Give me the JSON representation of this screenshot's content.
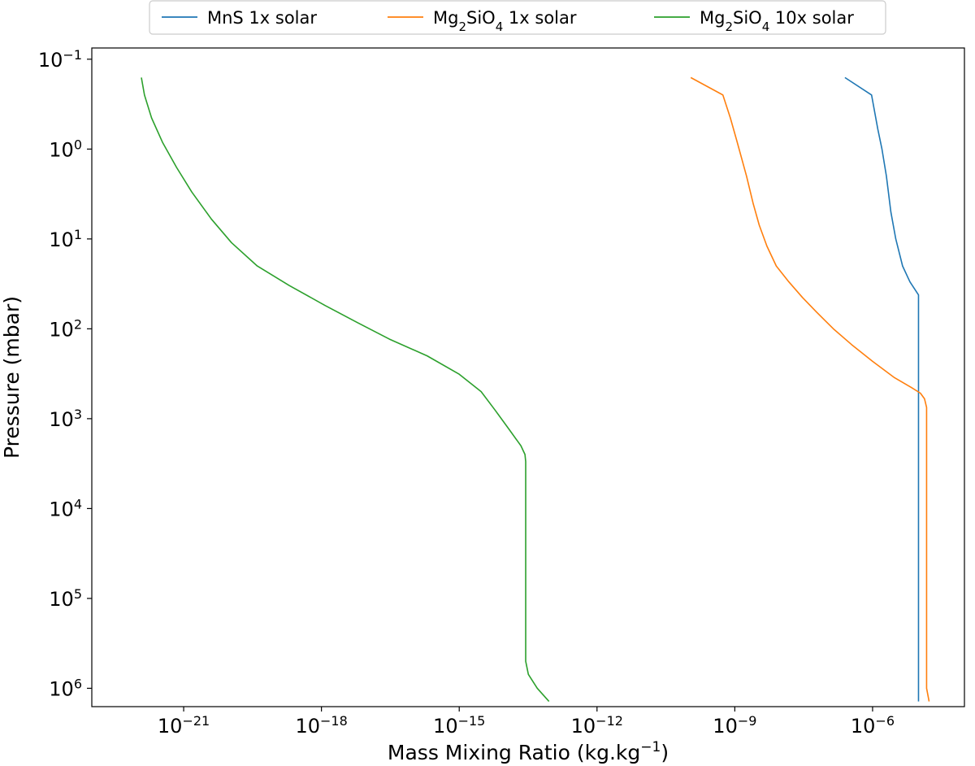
{
  "chart_data": {
    "type": "line",
    "xlabel": "Mass Mixing Ratio (kg.kg",
    "xlabel_sup": "−1",
    "xlabel_close": ")",
    "ylabel": "Pressure (mbar)",
    "x_scale": "log",
    "y_scale": "log",
    "y_inverted": true,
    "xlim": [
      1e-23,
      0.0001
    ],
    "ylim": [
      1600000.0,
      0.075
    ],
    "grid": false,
    "legend_position": "top-center (outside plot)",
    "x_ticks": [
      {
        "base": "10",
        "exp": "−21",
        "value": 1e-21
      },
      {
        "base": "10",
        "exp": "−18",
        "value": 1e-18
      },
      {
        "base": "10",
        "exp": "−15",
        "value": 1e-15
      },
      {
        "base": "10",
        "exp": "−12",
        "value": 1e-12
      },
      {
        "base": "10",
        "exp": "−9",
        "value": 1e-09
      },
      {
        "base": "10",
        "exp": "−6",
        "value": 1e-06
      }
    ],
    "y_ticks": [
      {
        "base": "10",
        "exp": "−1",
        "value": 0.1
      },
      {
        "base": "10",
        "exp": "0",
        "value": 1
      },
      {
        "base": "10",
        "exp": "1",
        "value": 10
      },
      {
        "base": "10",
        "exp": "2",
        "value": 100
      },
      {
        "base": "10",
        "exp": "3",
        "value": 1000
      },
      {
        "base": "10",
        "exp": "4",
        "value": 10000
      },
      {
        "base": "10",
        "exp": "5",
        "value": 100000
      },
      {
        "base": "10",
        "exp": "6",
        "value": 1000000
      }
    ],
    "series": [
      {
        "name_parts": [
          {
            "t": "MnS 1x solar",
            "sub": false
          }
        ],
        "color": "#1f77b4",
        "points": [
          [
            2.5e-07,
            0.16
          ],
          [
            9.5e-07,
            0.25
          ],
          [
            1.3e-06,
            0.6
          ],
          [
            1.6e-06,
            1.0
          ],
          [
            2e-06,
            2.0
          ],
          [
            2.5e-06,
            5.0
          ],
          [
            3.2e-06,
            10
          ],
          [
            4.5e-06,
            20
          ],
          [
            6.5e-06,
            30
          ],
          [
            1e-05,
            42
          ],
          [
            1e-05,
            1000
          ],
          [
            1e-05,
            100000
          ],
          [
            1e-05,
            1400000.0
          ]
        ]
      },
      {
        "name_parts": [
          {
            "t": "Mg",
            "sub": false
          },
          {
            "t": "2",
            "sub": true
          },
          {
            "t": "SiO",
            "sub": false
          },
          {
            "t": "4",
            "sub": true
          },
          {
            "t": " 1x solar",
            "sub": false
          }
        ],
        "color": "#ff7f0e",
        "points": [
          [
            1.1e-10,
            0.16
          ],
          [
            5.5e-10,
            0.25
          ],
          [
            8e-10,
            0.45
          ],
          [
            1.1e-09,
            0.8
          ],
          [
            1.8e-09,
            2.0
          ],
          [
            2.5e-09,
            4.0
          ],
          [
            3.4e-09,
            7.0
          ],
          [
            5e-09,
            12
          ],
          [
            8e-09,
            20
          ],
          [
            1.5e-08,
            30
          ],
          [
            3e-08,
            45
          ],
          [
            6e-08,
            65
          ],
          [
            1.4e-07,
            100
          ],
          [
            3.5e-07,
            150
          ],
          [
            1e-06,
            230
          ],
          [
            3e-06,
            350
          ],
          [
            7e-06,
            450
          ],
          [
            1.1e-05,
            520
          ],
          [
            1.35e-05,
            600
          ],
          [
            1.5e-05,
            750
          ],
          [
            1.5e-05,
            1000
          ],
          [
            1.5e-05,
            100000
          ],
          [
            1.5e-05,
            1000000.0
          ],
          [
            1.7e-05,
            1400000.0
          ]
        ]
      },
      {
        "name_parts": [
          {
            "t": "Mg",
            "sub": false
          },
          {
            "t": "2",
            "sub": true
          },
          {
            "t": "SiO",
            "sub": false
          },
          {
            "t": "4",
            "sub": true
          },
          {
            "t": " 10x solar",
            "sub": false
          }
        ],
        "color": "#2ca02c",
        "points": [
          [
            1.2e-22,
            0.16
          ],
          [
            1.4e-22,
            0.25
          ],
          [
            2e-22,
            0.45
          ],
          [
            3.5e-22,
            0.85
          ],
          [
            7e-22,
            1.6
          ],
          [
            1.5e-21,
            3.0
          ],
          [
            4e-21,
            6.0
          ],
          [
            1.1e-20,
            11
          ],
          [
            4e-20,
            20
          ],
          [
            2e-19,
            33
          ],
          [
            1.2e-18,
            55
          ],
          [
            6e-18,
            85
          ],
          [
            3e-17,
            130
          ],
          [
            2e-16,
            200
          ],
          [
            1e-15,
            320
          ],
          [
            3e-15,
            500
          ],
          [
            6e-15,
            800
          ],
          [
            1.2e-14,
            1300
          ],
          [
            2.2e-14,
            2000
          ],
          [
            2.7e-14,
            2500
          ],
          [
            2.8e-14,
            3000
          ],
          [
            2.8e-14,
            10000
          ],
          [
            2.8e-14,
            100000
          ],
          [
            2.8e-14,
            500000
          ],
          [
            3.2e-14,
            700000
          ],
          [
            5e-14,
            1000000.0
          ],
          [
            9e-14,
            1400000.0
          ]
        ]
      }
    ]
  }
}
